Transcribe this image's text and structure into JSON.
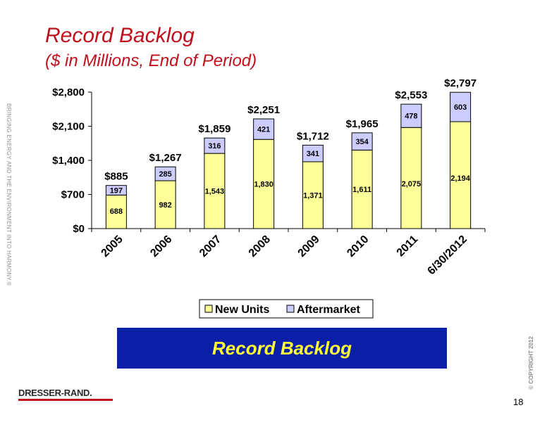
{
  "slide": {
    "title": "Record Backlog",
    "subtitle": "($ in Millions, End of Period)",
    "side_tagline": "BRINGING ENERGY AND THE ENVIRONMENT INTO HARMONY.®",
    "copyright": "© COPYRIGHT 2012",
    "banner_text": "Record Backlog",
    "logo_text": "DRESSER-RAND.",
    "page_number": "18"
  },
  "colors": {
    "title": "#c0101c",
    "new_units": "#ffff99",
    "aftermarket": "#ccccff",
    "banner_bg": "#0a1fa8",
    "banner_text": "#ffff33"
  },
  "chart_data": {
    "type": "bar",
    "stacked": true,
    "categories": [
      "2005",
      "2006",
      "2007",
      "2008",
      "2009",
      "2010",
      "2011",
      "6/30/2012"
    ],
    "series": [
      {
        "name": "New Units",
        "values": [
          688,
          982,
          1543,
          1830,
          1371,
          1611,
          2075,
          2194
        ],
        "labels": [
          "688",
          "982",
          "1,543",
          "1,830",
          "1,371",
          "1,611",
          "2,075",
          "2,194"
        ]
      },
      {
        "name": "Aftermarket",
        "values": [
          197,
          285,
          316,
          421,
          341,
          354,
          478,
          603
        ],
        "labels": [
          "197",
          "285",
          "316",
          "421",
          "341",
          "354",
          "478",
          "603"
        ]
      }
    ],
    "totals": [
      "$885",
      "$1,267",
      "$1,859",
      "$2,251",
      "$1,712",
      "$1,965",
      "$2,553",
      "$2,797"
    ],
    "y_ticks": [
      0,
      700,
      1400,
      2100,
      2800
    ],
    "y_tick_labels": [
      "$0",
      "$700",
      "$1,400",
      "$2,100",
      "$2,800"
    ],
    "ylim": [
      0,
      2800
    ],
    "legend_position": "bottom",
    "grid": false
  }
}
